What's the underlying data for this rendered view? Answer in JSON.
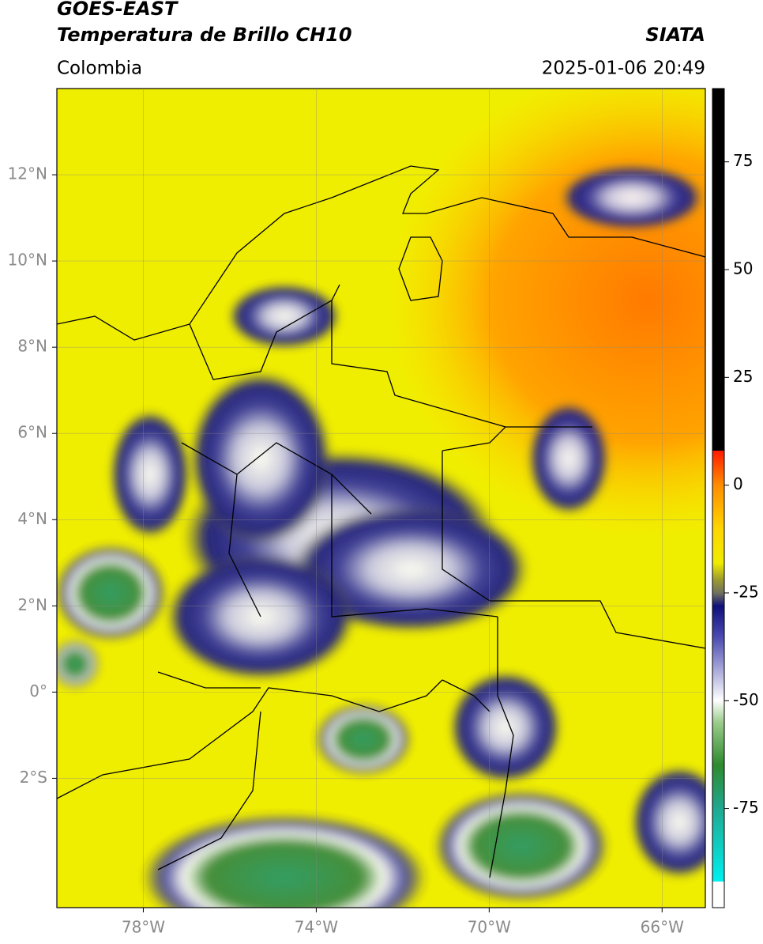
{
  "header": {
    "satellite": "GOES-EAST",
    "product": "Temperatura de Brillo CH10",
    "region": "Colombia",
    "source": "SIATA",
    "datetime": "2025-01-06 20:49"
  },
  "map": {
    "xlim": [
      -80,
      -65
    ],
    "ylim": [
      -5,
      14
    ],
    "xticks": [
      {
        "value": -78,
        "label": "78°W"
      },
      {
        "value": -74,
        "label": "74°W"
      },
      {
        "value": -70,
        "label": "70°W"
      },
      {
        "value": -66,
        "label": "66°W"
      }
    ],
    "yticks": [
      {
        "value": 12,
        "label": "12°N"
      },
      {
        "value": 10,
        "label": "10°N"
      },
      {
        "value": 8,
        "label": "8°N"
      },
      {
        "value": 6,
        "label": "6°N"
      },
      {
        "value": 4,
        "label": "4°N"
      },
      {
        "value": 2,
        "label": "2°N"
      },
      {
        "value": 0,
        "label": "0°"
      },
      {
        "value": -2,
        "label": "2°S"
      }
    ],
    "grid": true
  },
  "colorbar": {
    "lim": [
      -98,
      92
    ],
    "ticks": [
      75,
      50,
      25,
      0,
      -25,
      -50,
      -75
    ]
  }
}
